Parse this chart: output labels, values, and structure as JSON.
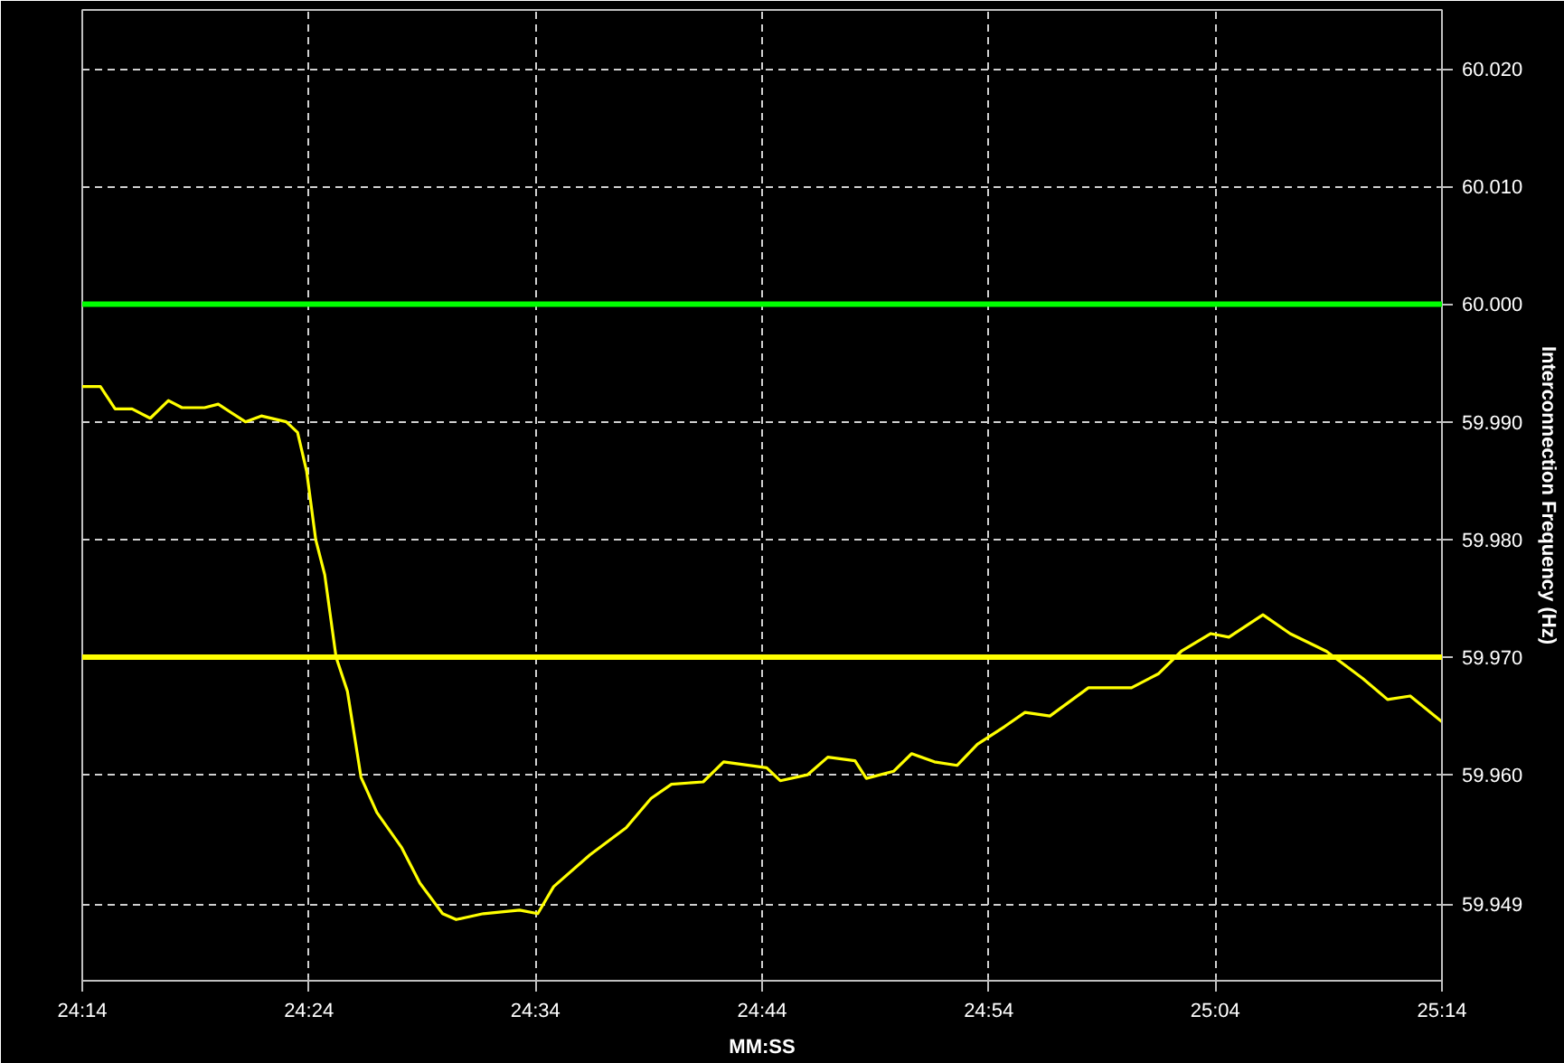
{
  "chart_data": {
    "type": "line",
    "xlabel": "MM:SS",
    "ylabel": "Interconnection Frequency (Hz)",
    "xlim": [
      1454,
      1514
    ],
    "ylim": [
      59.9425,
      60.025
    ],
    "xticks": [
      {
        "value": 1454,
        "label": "24:14"
      },
      {
        "value": 1464,
        "label": "24:24"
      },
      {
        "value": 1474,
        "label": "24:34"
      },
      {
        "value": 1484,
        "label": "24:44"
      },
      {
        "value": 1494,
        "label": "24:54"
      },
      {
        "value": 1504,
        "label": "25:04"
      },
      {
        "value": 1514,
        "label": "25:14"
      }
    ],
    "yticks": [
      59.949,
      {
        "value": 59.96,
        "label": "59.960"
      },
      {
        "value": 59.97,
        "label": "59.970"
      },
      {
        "value": 59.98,
        "label": "59.980"
      },
      {
        "value": 59.99,
        "label": "59.990"
      },
      {
        "value": 60.0,
        "label": "60.000"
      },
      {
        "value": 60.01,
        "label": "60.010"
      },
      {
        "value": 60.02,
        "label": "60.020"
      }
    ],
    "grid": true,
    "line_style": "solid",
    "marker": "none",
    "ref_lines": [
      {
        "axis": "y",
        "value": 60.0,
        "label": null,
        "color": "#00ff00"
      },
      {
        "axis": "y",
        "value": 59.97,
        "label": null,
        "color": "#ffff00"
      }
    ],
    "series": [
      {
        "color": "#ffff00",
        "x": [
          1454.0,
          1454.8,
          1455.45,
          1456.2,
          1457.0,
          1457.8,
          1458.4,
          1459.4,
          1460.0,
          1461.2,
          1461.9,
          1463.0,
          1463.5,
          1463.9,
          1464.3,
          1464.7,
          1465.2,
          1465.7,
          1466.3,
          1467.0,
          1468.1,
          1468.9,
          1469.9,
          1470.5,
          1471.7,
          1473.3,
          1474.1,
          1474.8,
          1476.4,
          1478.0,
          1479.1,
          1480.0,
          1481.4,
          1482.3,
          1484.2,
          1484.8,
          1486.0,
          1486.9,
          1488.1,
          1488.6,
          1489.8,
          1490.6,
          1491.6,
          1492.6,
          1493.5,
          1494.7,
          1495.6,
          1496.7,
          1498.4,
          1500.3,
          1501.5,
          1502.5,
          1503.8,
          1504.6,
          1506.1,
          1507.3,
          1508.9,
          1510.5,
          1511.6,
          1512.6,
          1514.0
        ],
        "values": [
          59.993,
          59.993,
          59.9911,
          59.9911,
          59.9903,
          59.9918,
          59.9912,
          59.9912,
          59.9915,
          59.99,
          59.9905,
          59.99,
          59.9891,
          59.9858,
          59.98,
          59.977,
          59.97,
          59.9671,
          59.9598,
          59.9568,
          59.9538,
          59.9508,
          59.9482,
          59.9477,
          59.9482,
          59.9485,
          59.9482,
          59.9505,
          59.9532,
          59.9555,
          59.958,
          59.9592,
          59.9594,
          59.9611,
          59.9606,
          59.9595,
          59.96,
          59.9615,
          59.9612,
          59.9597,
          59.9603,
          59.9618,
          59.9611,
          59.9608,
          59.9626,
          59.9641,
          59.9653,
          59.965,
          59.9674,
          59.9674,
          59.9686,
          59.9705,
          59.972,
          59.9717,
          59.9736,
          59.972,
          59.9705,
          59.9682,
          59.9664,
          59.9667,
          59.9645
        ]
      }
    ]
  }
}
